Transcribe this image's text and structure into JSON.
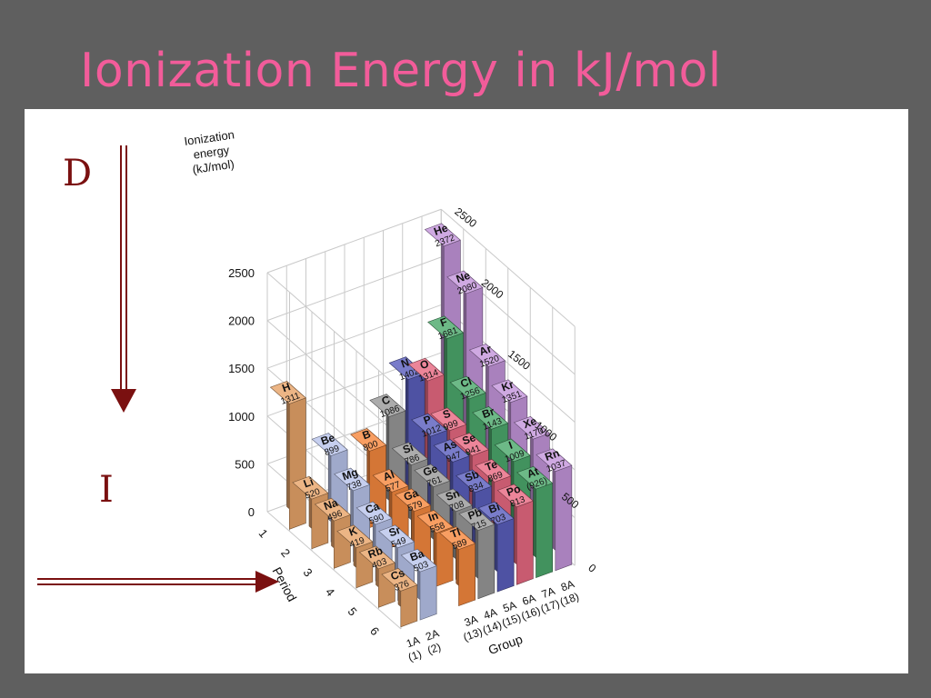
{
  "slide": {
    "title": "Ionization Energy in kJ/mol"
  },
  "annotations": {
    "down_label": "D",
    "across_label": "I"
  },
  "colors": {
    "bg": "#5f5f5f",
    "title": "#f25c9a",
    "arrow": "#7a1010",
    "group_1A": "#e8a56a",
    "group_2A": "#b9c4ec",
    "group_3A": "#f7893f",
    "group_4A": "#9a9a9a",
    "group_5A": "#5b5fbe",
    "group_6A": "#e86a82",
    "group_7A": "#4daa6d",
    "group_8A": "#c496dc"
  },
  "chart_data": {
    "type": "bar3d",
    "ylabel_lines": [
      "Ionization",
      "energy",
      "(kJ/mol)"
    ],
    "xlabel": "Group",
    "zlabel": "Period",
    "yticks": [
      "0",
      "500",
      "1000",
      "1500",
      "2000",
      "2500"
    ],
    "right_yticks": [
      "2500",
      "2000",
      "1500",
      "1000",
      "500",
      "0"
    ],
    "ylim": [
      0,
      2500
    ],
    "periods": [
      "1",
      "2",
      "3",
      "4",
      "5",
      "6"
    ],
    "groups": [
      {
        "label": "1A",
        "num": "(1)"
      },
      {
        "label": "2A",
        "num": "(2)"
      },
      {
        "label": "3A",
        "num": "(13)"
      },
      {
        "label": "4A",
        "num": "(14)"
      },
      {
        "label": "5A",
        "num": "(15)"
      },
      {
        "label": "6A",
        "num": "(16)"
      },
      {
        "label": "7A",
        "num": "(17)"
      },
      {
        "label": "8A",
        "num": "(18)"
      }
    ],
    "elements": [
      {
        "symbol": "H",
        "value": 1311,
        "label": "1311",
        "group": 0,
        "period": 1
      },
      {
        "symbol": "He",
        "value": 2372,
        "label": "2372",
        "group": 7,
        "period": 1
      },
      {
        "symbol": "Li",
        "value": 520,
        "label": "520",
        "group": 0,
        "period": 2
      },
      {
        "symbol": "Be",
        "value": 899,
        "label": "899",
        "group": 1,
        "period": 2
      },
      {
        "symbol": "B",
        "value": 800,
        "label": "800",
        "group": 2,
        "period": 2
      },
      {
        "symbol": "C",
        "value": 1086,
        "label": "1086",
        "group": 3,
        "period": 2
      },
      {
        "symbol": "N",
        "value": 1402,
        "label": "1402",
        "group": 4,
        "period": 2
      },
      {
        "symbol": "O",
        "value": 1314,
        "label": "1314",
        "group": 5,
        "period": 2
      },
      {
        "symbol": "F",
        "value": 1681,
        "label": "1681",
        "group": 6,
        "period": 2
      },
      {
        "symbol": "Ne",
        "value": 2080,
        "label": "2080",
        "group": 7,
        "period": 2
      },
      {
        "symbol": "Na",
        "value": 496,
        "label": "496",
        "group": 0,
        "period": 3
      },
      {
        "symbol": "Mg",
        "value": 738,
        "label": "738",
        "group": 1,
        "period": 3
      },
      {
        "symbol": "Al",
        "value": 577,
        "label": "577",
        "group": 2,
        "period": 3
      },
      {
        "symbol": "Si",
        "value": 786,
        "label": "786",
        "group": 3,
        "period": 3
      },
      {
        "symbol": "P",
        "value": 1012,
        "label": "1012",
        "group": 4,
        "period": 3
      },
      {
        "symbol": "S",
        "value": 999,
        "label": "999",
        "group": 5,
        "period": 3
      },
      {
        "symbol": "Cl",
        "value": 1256,
        "label": "1256",
        "group": 6,
        "period": 3
      },
      {
        "symbol": "Ar",
        "value": 1520,
        "label": "1520",
        "group": 7,
        "period": 3
      },
      {
        "symbol": "K",
        "value": 419,
        "label": "419",
        "group": 0,
        "period": 4
      },
      {
        "symbol": "Ca",
        "value": 590,
        "label": "590",
        "group": 1,
        "period": 4
      },
      {
        "symbol": "Ga",
        "value": 579,
        "label": "579",
        "group": 2,
        "period": 4
      },
      {
        "symbol": "Ge",
        "value": 761,
        "label": "761",
        "group": 3,
        "period": 4
      },
      {
        "symbol": "As",
        "value": 947,
        "label": "947",
        "group": 4,
        "period": 4
      },
      {
        "symbol": "Se",
        "value": 941,
        "label": "941",
        "group": 5,
        "period": 4
      },
      {
        "symbol": "Br",
        "value": 1143,
        "label": "1143",
        "group": 6,
        "period": 4
      },
      {
        "symbol": "Kr",
        "value": 1351,
        "label": "1351",
        "group": 7,
        "period": 4
      },
      {
        "symbol": "Rb",
        "value": 403,
        "label": "403",
        "group": 0,
        "period": 5
      },
      {
        "symbol": "Sr",
        "value": 549,
        "label": "549",
        "group": 1,
        "period": 5
      },
      {
        "symbol": "In",
        "value": 558,
        "label": "558",
        "group": 2,
        "period": 5
      },
      {
        "symbol": "Sn",
        "value": 708,
        "label": "708",
        "group": 3,
        "period": 5
      },
      {
        "symbol": "Sb",
        "value": 834,
        "label": "834",
        "group": 4,
        "period": 5
      },
      {
        "symbol": "Te",
        "value": 869,
        "label": "869",
        "group": 5,
        "period": 5
      },
      {
        "symbol": "I",
        "value": 1009,
        "label": "1009",
        "group": 6,
        "period": 5
      },
      {
        "symbol": "Xe",
        "value": 1170,
        "label": "1170",
        "group": 7,
        "period": 5
      },
      {
        "symbol": "Cs",
        "value": 376,
        "label": "376",
        "group": 0,
        "period": 6
      },
      {
        "symbol": "Ba",
        "value": 503,
        "label": "503",
        "group": 1,
        "period": 6
      },
      {
        "symbol": "Tl",
        "value": 589,
        "label": "589",
        "group": 2,
        "period": 6
      },
      {
        "symbol": "Pb",
        "value": 715,
        "label": "715",
        "group": 3,
        "period": 6
      },
      {
        "symbol": "Bi",
        "value": 703,
        "label": "703",
        "group": 4,
        "period": 6
      },
      {
        "symbol": "Po",
        "value": 813,
        "label": "813",
        "group": 5,
        "period": 6
      },
      {
        "symbol": "At",
        "value": 926,
        "label": "(926)",
        "group": 6,
        "period": 6
      },
      {
        "symbol": "Rn",
        "value": 1037,
        "label": "1037",
        "group": 7,
        "period": 6
      }
    ]
  }
}
